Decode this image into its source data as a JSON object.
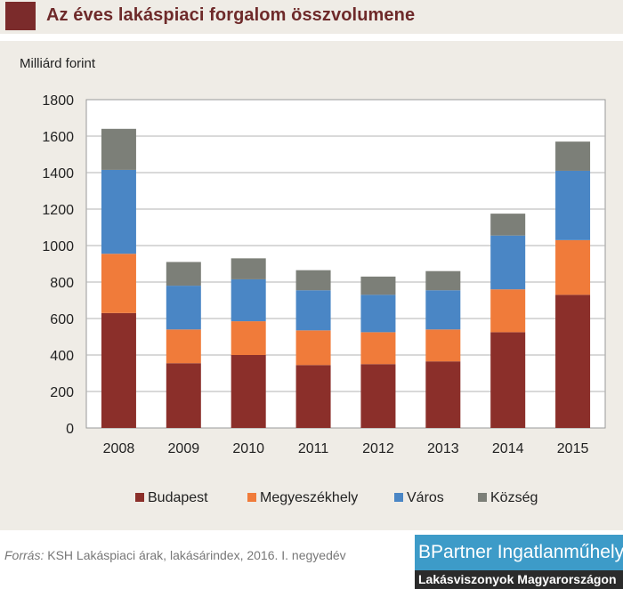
{
  "title": "Az éves lakáspiaci forgalom összvolumene",
  "colors": {
    "title_square": "#7b2b2b",
    "title_text": "#6e2a2a",
    "background": "#efece6",
    "brand_blue": "#3d9bc8",
    "brand_dark": "#2b2b2b"
  },
  "chart_data": {
    "type": "bar",
    "stacked": true,
    "ylabel": "Milliárd forint",
    "ylim": [
      0,
      1800
    ],
    "yticks": [
      "0",
      "200",
      "400",
      "600",
      "800",
      "1000",
      "1200",
      "1400",
      "1600",
      "1800"
    ],
    "grid": true,
    "legend_position": "bottom",
    "categories": [
      "2008",
      "2009",
      "2010",
      "2011",
      "2012",
      "2013",
      "2014",
      "2015"
    ],
    "series": [
      {
        "name": "Budapest",
        "color": "#8b2f2a",
        "values": [
          630,
          355,
          400,
          345,
          350,
          365,
          525,
          730
        ]
      },
      {
        "name": "Megyeszékhely",
        "color": "#f07b3a",
        "values": [
          325,
          185,
          185,
          190,
          175,
          175,
          235,
          300
        ]
      },
      {
        "name": "Város",
        "color": "#4a86c5",
        "values": [
          460,
          240,
          230,
          220,
          205,
          215,
          295,
          380
        ]
      },
      {
        "name": "Község",
        "color": "#7c7f78",
        "values": [
          225,
          130,
          115,
          110,
          100,
          105,
          120,
          160
        ]
      }
    ]
  },
  "source": {
    "prefix": "Forrás:",
    "text": " KSH Lakáspiaci árak, lakásárindex, 2016. I. negyedév"
  },
  "brand": {
    "name": "BPartner Ingatlanműhely",
    "tagline": "Lakásviszonyok Magyarországon"
  }
}
